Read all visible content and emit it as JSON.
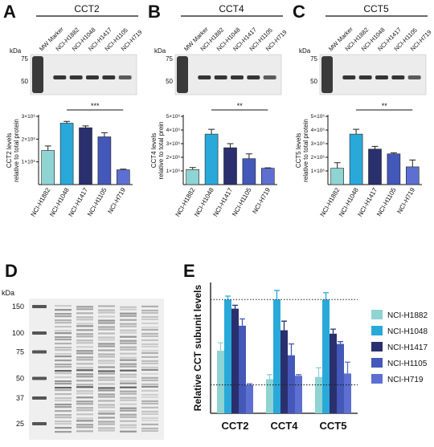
{
  "chart_data": [
    {
      "type": "bar",
      "panel": "A",
      "title": "CCT2",
      "ylabel": [
        "CCT2 levels",
        "relative to total protein"
      ],
      "categories": [
        "NCI-H1882",
        "NCI-H1048",
        "NCI-H1417",
        "NCI-H1105",
        "NCI-H719"
      ],
      "values": [
        1500000,
        2700000,
        2500000,
        2100000,
        650000
      ],
      "errors": [
        200000,
        80000,
        80000,
        180000,
        30000
      ],
      "colors": [
        "#8fd3d3",
        "#29a9d9",
        "#2a2f6e",
        "#4358b8",
        "#5d6fd0"
      ],
      "ylim": [
        0,
        3000000
      ],
      "yticks": [
        {
          "value": 1000000,
          "label": "1×10⁶"
        },
        {
          "value": 2000000,
          "label": "2×10⁶"
        },
        {
          "value": 3000000,
          "label": "3×10⁶"
        }
      ],
      "significance": "***"
    },
    {
      "type": "bar",
      "panel": "B",
      "title": "CCT4",
      "ylabel": [
        "CCT4 levels",
        "relative to total prein"
      ],
      "categories": [
        "NCI-H1882",
        "NCI-H1048",
        "NCI-H1417",
        "NCI-H1105",
        "NCI-H719"
      ],
      "values": [
        1100000,
        3700000,
        2700000,
        1900000,
        1200000
      ],
      "errors": [
        150000,
        350000,
        300000,
        350000,
        30000
      ],
      "colors": [
        "#8fd3d3",
        "#29a9d9",
        "#2a2f6e",
        "#4358b8",
        "#5d6fd0"
      ],
      "ylim": [
        0,
        5000000
      ],
      "yticks": [
        {
          "value": 1000000,
          "label": "1×10⁶"
        },
        {
          "value": 2000000,
          "label": "2×10⁶"
        },
        {
          "value": 3000000,
          "label": "3×10⁶"
        },
        {
          "value": 4000000,
          "label": "4×10⁶"
        },
        {
          "value": 5000000,
          "label": "5×10⁶"
        }
      ],
      "significance": "**"
    },
    {
      "type": "bar",
      "panel": "C",
      "title": "CCT5",
      "ylabel": [
        "CCT5 levels",
        "relative to total protein"
      ],
      "categories": [
        "NCI-H1882",
        "NCI-H1048",
        "NCI-H1417",
        "NCI-H1105",
        "NCI-H719"
      ],
      "values": [
        1200000,
        3700000,
        2600000,
        2250000,
        1300000
      ],
      "errors": [
        400000,
        350000,
        200000,
        80000,
        500000
      ],
      "colors": [
        "#8fd3d3",
        "#29a9d9",
        "#2a2f6e",
        "#4358b8",
        "#5d6fd0"
      ],
      "ylim": [
        0,
        5000000
      ],
      "yticks": [
        {
          "value": 1000000,
          "label": "1×10⁶"
        },
        {
          "value": 2000000,
          "label": "2×10⁶"
        },
        {
          "value": 3000000,
          "label": "3×10⁶"
        },
        {
          "value": 4000000,
          "label": "4×10⁶"
        },
        {
          "value": 5000000,
          "label": "5×10⁶"
        }
      ],
      "significance": "**"
    },
    {
      "type": "grouped-bar",
      "panel": "E",
      "ylabel": "Relative CCT subunit levels",
      "categories": [
        "CCT2",
        "CCT4",
        "CCT5"
      ],
      "series": [
        {
          "name": "NCI-H1882",
          "color": "#8fd3d3",
          "values": [
            55,
            30,
            32
          ],
          "errors": [
            7,
            4,
            8
          ]
        },
        {
          "name": "NCI-H1048",
          "color": "#29a9d9",
          "values": [
            100,
            100,
            100
          ],
          "errors": [
            3,
            8,
            6
          ]
        },
        {
          "name": "NCI-H1417",
          "color": "#2a2f6e",
          "values": [
            92,
            73,
            70
          ],
          "errors": [
            3,
            8,
            4
          ]
        },
        {
          "name": "NCI-H1105",
          "color": "#4358b8",
          "values": [
            77,
            51,
            61
          ],
          "errors": [
            6,
            10,
            2
          ]
        },
        {
          "name": "NCI-H719",
          "color": "#5d6fd0",
          "values": [
            25,
            33,
            35
          ],
          "errors": [
            1,
            1,
            10
          ]
        }
      ],
      "ylim": [
        0,
        115
      ],
      "ref_lines": [
        100,
        25
      ]
    }
  ],
  "blots": [
    {
      "unit": "kDa",
      "markers": [
        75,
        50
      ],
      "lanes": [
        "MW Marker",
        "NCI-H1882",
        "NCI-H1048",
        "NCI-H1417",
        "NCI-H1105",
        "NCI-H719"
      ]
    },
    {
      "unit": "kDa",
      "markers": [
        75,
        50
      ],
      "lanes": [
        "MW Marker",
        "NCI-H1882",
        "NCI-H1048",
        "NCI-H1417",
        "NCI-H1105",
        "NCI-H719"
      ]
    },
    {
      "unit": "kDa",
      "markers": [
        75,
        50
      ],
      "lanes": [
        "MW Marker",
        "NCI-H1882",
        "NCI-H1048",
        "NCI-H1417",
        "NCI-H1105",
        "NCI-H719"
      ]
    }
  ],
  "gel": {
    "panel": "D",
    "unit": "kDa",
    "markers": [
      150,
      100,
      75,
      50,
      37,
      25
    ]
  }
}
